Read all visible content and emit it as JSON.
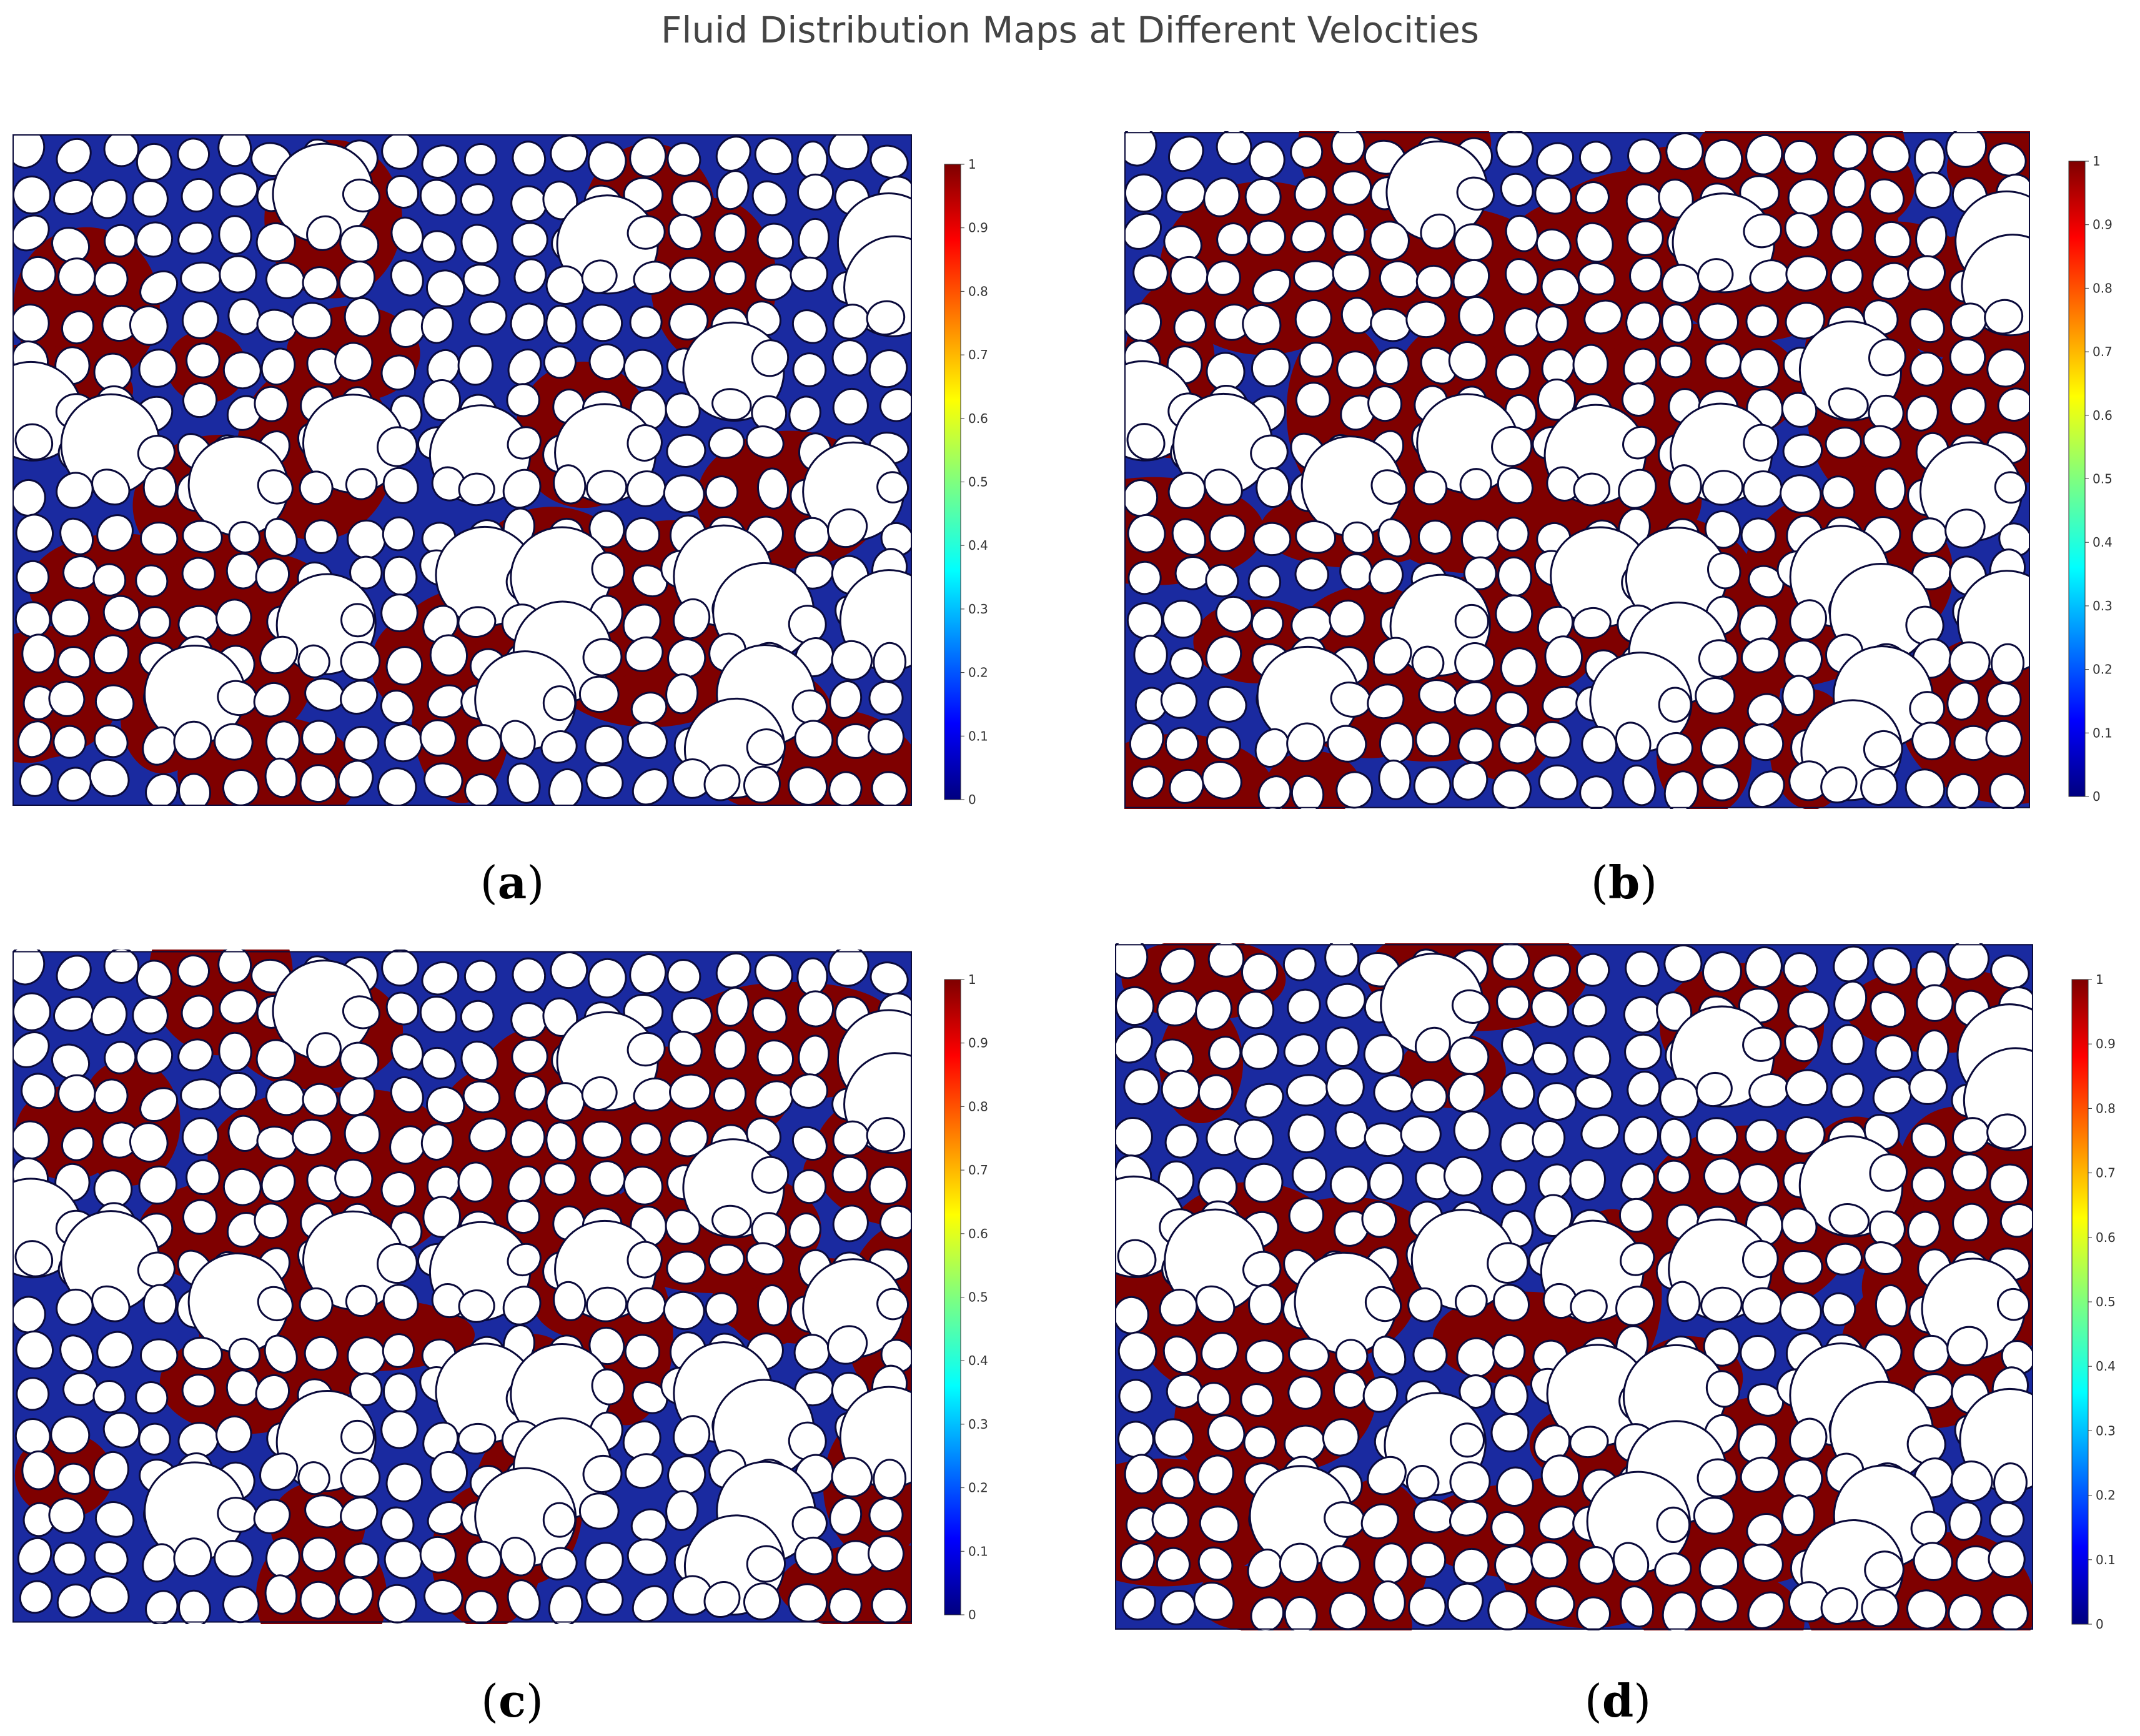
{
  "title": "Fluid Distribution Maps at Different Velocities",
  "colors": {
    "high": "#7f0000",
    "low": "#1a2aa0",
    "grain": "#ffffff",
    "outline": "#0a0a3a"
  },
  "colorbar": {
    "ticks": [
      "0",
      "0.1",
      "0.2",
      "0.3",
      "0.4",
      "0.5",
      "0.6",
      "0.7",
      "0.8",
      "0.9",
      "1"
    ]
  },
  "panels": [
    {
      "id": "a",
      "open": "(",
      "letter": "a",
      "close": ")",
      "red_fraction": 0.42
    },
    {
      "id": "b",
      "open": "(",
      "letter": "b",
      "close": ")",
      "red_fraction": 0.85
    },
    {
      "id": "c",
      "open": "(",
      "letter": "c",
      "close": ")",
      "red_fraction": 0.48
    },
    {
      "id": "d",
      "open": "(",
      "letter": "d",
      "close": ")",
      "red_fraction": 0.55
    }
  ]
}
